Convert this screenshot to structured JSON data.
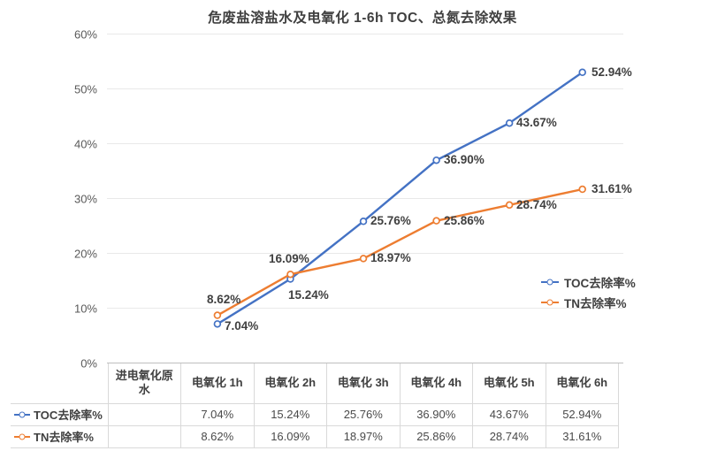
{
  "title": "危废盐溶盐水及电氧化 1-6h TOC、总氮去除效果",
  "colors": {
    "toc_series": "#4472C4",
    "tn_series": "#ED7D31",
    "gridline": "#E9E9E9",
    "axis_line": "#BFBFBF",
    "table_border": "#D9D9D9",
    "title_text": "#3F3F3F",
    "axis_text": "#595959",
    "label_text": "#404040"
  },
  "chart_data": {
    "type": "line",
    "title": "危废盐溶盐水及电氧化 1-6h TOC、总氮去除效果",
    "categories": [
      "进电氧化原水",
      "电氧化 1h",
      "电氧化 2h",
      "电氧化 3h",
      "电氧化 4h",
      "电氧化 5h",
      "电氧化 6h"
    ],
    "series": [
      {
        "name": "TOC去除率%",
        "color": "#4472C4",
        "values": [
          null,
          7.04,
          15.24,
          25.76,
          36.9,
          43.67,
          52.94
        ],
        "point_labels": [
          "",
          "7.04%",
          "15.24%",
          "25.76%",
          "36.90%",
          "43.67%",
          "52.94%"
        ]
      },
      {
        "name": "TN去除率%",
        "color": "#ED7D31",
        "values": [
          null,
          8.62,
          16.09,
          18.97,
          25.86,
          28.74,
          31.61
        ],
        "point_labels": [
          "",
          "8.62%",
          "16.09%",
          "18.97%",
          "25.86%",
          "28.74%",
          "31.61%"
        ]
      }
    ],
    "ylim": [
      0,
      60
    ],
    "ytick_step": 10,
    "ytick_labels": [
      "0%",
      "10%",
      "20%",
      "30%",
      "40%",
      "50%",
      "60%"
    ],
    "xlabel": "",
    "ylabel": "",
    "grid": true,
    "marker": "open-circle",
    "legend_position": "right-inside"
  },
  "legend": {
    "items": [
      {
        "label": "TOC去除率%",
        "color": "#4472C4"
      },
      {
        "label": "TN去除率%",
        "color": "#ED7D31"
      }
    ]
  },
  "table": {
    "corner_label": "",
    "col_headers": [
      "进电氧化原水",
      "电氧化 1h",
      "电氧化 2h",
      "电氧化 3h",
      "电氧化 4h",
      "电氧化 5h",
      "电氧化 6h"
    ],
    "rows": [
      {
        "label": "TOC去除率%",
        "key_color": "#4472C4",
        "cells": [
          "",
          "7.04%",
          "15.24%",
          "25.76%",
          "36.90%",
          "43.67%",
          "52.94%"
        ]
      },
      {
        "label": "TN去除率%",
        "key_color": "#ED7D31",
        "cells": [
          "",
          "8.62%",
          "16.09%",
          "18.97%",
          "25.86%",
          "28.74%",
          "31.61%"
        ]
      }
    ]
  }
}
